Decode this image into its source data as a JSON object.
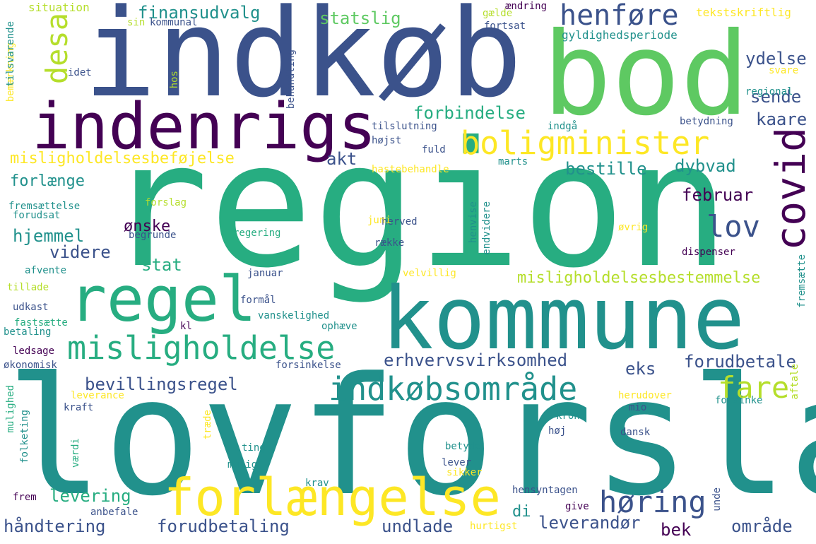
{
  "colors": {
    "background": "#ffffff",
    "palette": [
      "#440154",
      "#3b528b",
      "#21918c",
      "#27ad81",
      "#5ec962",
      "#b5de2b",
      "#fde725"
    ]
  },
  "words": {
    "region": "region",
    "lovforslag": "lovforslag",
    "indkob": "indkøb",
    "bod": "bod",
    "kommune": "kommune",
    "indenrigs": "indenrigs",
    "regel": "regel",
    "forlaengelse": "forlængelse",
    "misligholdelse": "misligholdelse",
    "indkobsomraade": "indkøbsområde",
    "boligminister": "boligminister",
    "henfore": "henføre",
    "covid": "covid",
    "desa": "desa",
    "hoering": "høring",
    "fare": "fare",
    "lov": "lov",
    "misligholdelsesbefojelse": "misligholdelsesbeføjelse",
    "misligholdelsesbestemmelse": "misligholdelsesbestemmelse",
    "finansudvalg": "finansudvalg",
    "statslig": "statslig",
    "forbindelse": "forbindelse",
    "ydelse": "ydelse",
    "sende": "sende",
    "kaare": "kaare",
    "akt": "akt",
    "bestille": "bestille",
    "dybvad": "dybvad",
    "februar": "februar",
    "forlaenge": "forlænge",
    "hjemmel": "hjemmel",
    "onske": "ønske",
    "videre": "videre",
    "stat": "stat",
    "erhvervsvirksomhed": "erhvervsvirksomhed",
    "forudbetale": "forudbetale",
    "eks": "eks",
    "bevillingsregel": "bevillingsregel",
    "levering": "levering",
    "haandtering": "håndtering",
    "forudbetaling": "forudbetaling",
    "undlade": "undlade",
    "leverandor": "leverandør",
    "omraade": "område",
    "di": "di",
    "bek": "bek",
    "situation": "situation",
    "sin": "sin",
    "kommunal": "kommunal",
    "gaelde": "gælde",
    "aendring": "ændring",
    "fortsat": "fortsat",
    "tekstskriftlig": "tekstskriftlig",
    "gyldighedsperiode": "gyldighedsperiode",
    "svare": "svare",
    "regional": "regional",
    "idet": "idet",
    "hos": "hos",
    "behandling": "behandling",
    "bemaerkning": "bemærkning",
    "tilsvarende": "tilsvarende",
    "tilslutning": "tilslutning",
    "hojst": "højst",
    "fuld": "fuld",
    "hastebehandle": "hastebehandle",
    "marts": "marts",
    "indgaa": "indgå",
    "betydning": "betydning",
    "forslag": "forslag",
    "fremsaettelse": "fremsættelse",
    "forudsat": "forudsat",
    "herved": "herved",
    "juni": "juni",
    "henvise": "henvise",
    "endvidere": "endvidere",
    "oevrig": "øvrig",
    "regering": "regering",
    "begrunde": "begrunde",
    "raekke": "række",
    "dispenser": "dispenser",
    "afvente": "afvente",
    "januar": "januar",
    "velvillig": "velvillig",
    "tillade": "tillade",
    "fremsaette": "fremsætte",
    "formaal": "formål",
    "udkast": "udkast",
    "vanskelighed": "vanskelighed",
    "fastsaette": "fastsætte",
    "betaling": "betaling",
    "ophaeve": "ophæve",
    "kl": "kl",
    "ledsage": "ledsage",
    "okonomisk": "økonomisk",
    "forsinkelse": "forsinkelse",
    "leverance": "leverance",
    "forsinke": "forsinke",
    "aftale": "aftale",
    "herudover": "herudover",
    "kraft": "kraft",
    "mio": "mio",
    "mulighed": "mulighed",
    "folketing": "folketing",
    "traede": "træde",
    "vaerdi": "værdi",
    "krone": "krone",
    "hoj": "høj",
    "dansk": "dansk",
    "ting": "ting",
    "mulig": "mulig",
    "betyde": "betyde",
    "lever": "lever",
    "sikker": "sikker",
    "krav": "krav",
    "frem": "frem",
    "hensyntagen": "hensyntagen",
    "anbefale": "anbefale",
    "give": "give",
    "unde": "unde",
    "hurtigst": "hurtigst"
  }
}
